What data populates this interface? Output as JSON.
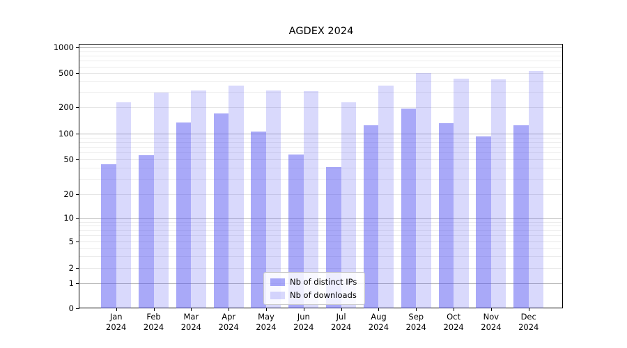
{
  "chart_data": {
    "type": "bar",
    "title": "AGDEX 2024",
    "categories": [
      {
        "month": "Jan",
        "year": "2024"
      },
      {
        "month": "Feb",
        "year": "2024"
      },
      {
        "month": "Mar",
        "year": "2024"
      },
      {
        "month": "Apr",
        "year": "2024"
      },
      {
        "month": "May",
        "year": "2024"
      },
      {
        "month": "Jun",
        "year": "2024"
      },
      {
        "month": "Jul",
        "year": "2024"
      },
      {
        "month": "Aug",
        "year": "2024"
      },
      {
        "month": "Sep",
        "year": "2024"
      },
      {
        "month": "Oct",
        "year": "2024"
      },
      {
        "month": "Nov",
        "year": "2024"
      },
      {
        "month": "Dec",
        "year": "2024"
      }
    ],
    "series": [
      {
        "name": "Nb of distinct IPs",
        "values": [
          44,
          56,
          135,
          170,
          106,
          57,
          41,
          125,
          193,
          131,
          94,
          125
        ]
      },
      {
        "name": "Nb of downloads",
        "values": [
          227,
          295,
          315,
          360,
          315,
          310,
          227,
          360,
          505,
          435,
          425,
          530
        ]
      }
    ],
    "colors": {
      "ips": "rgba(80,80,240,0.49)",
      "downloads": "rgba(80,80,240,0.22)"
    },
    "yscale": "symlog",
    "yticks": [
      0,
      1,
      2,
      5,
      10,
      20,
      50,
      100,
      200,
      500,
      1000
    ],
    "ylim": [
      0,
      1000
    ],
    "xlabel": "",
    "ylabel": "",
    "grid": true,
    "legend_position": "lower center"
  }
}
